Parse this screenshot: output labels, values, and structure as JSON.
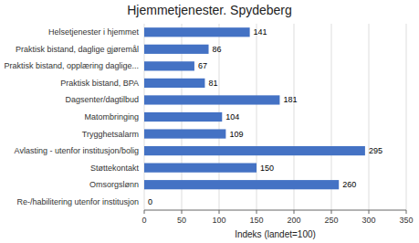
{
  "chart_data": {
    "type": "bar",
    "orientation": "horizontal",
    "title": "Hjemmetjenester. Spydeberg",
    "categories": [
      "Re-/habilitering utenfor institusjon",
      "Omsorgslønn",
      "Støttekontakt",
      "Avlasting - utenfor institusjon/bolig",
      "Trygghetsalarm",
      "Matombringing",
      "Dagsenter/dagtilbud",
      "Praktisk bistand, BPA",
      "Praktisk bistand, opplæring daglige...",
      "Praktisk bistand, daglige gjøremål",
      "Helsetjenester i hjemmet"
    ],
    "values": [
      0,
      260,
      150,
      295,
      109,
      104,
      181,
      81,
      67,
      86,
      141
    ],
    "color": "#4472C4",
    "xlabel": "Indeks (landet=100)",
    "xlim": [
      0,
      350
    ],
    "xticks": [
      0,
      50,
      100,
      150,
      200,
      250,
      300,
      350
    ],
    "grid": true,
    "data_labels": true
  }
}
